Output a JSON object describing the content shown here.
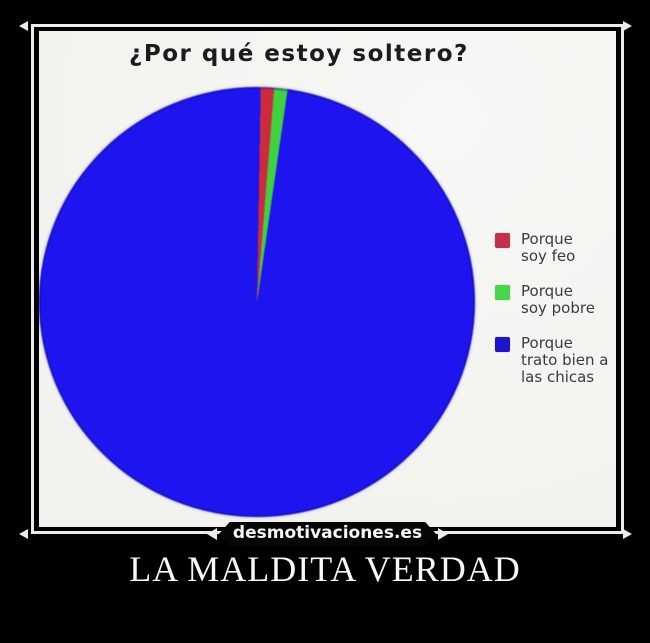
{
  "meme": {
    "caption": "LA MALDITA VERDAD",
    "watermark": "desmotivaciones.es"
  },
  "chart_data": {
    "type": "pie",
    "title": "¿Por qué estoy soltero?",
    "unit": "percent",
    "start_angle_deg": 1,
    "legend_position": "right",
    "slices": [
      {
        "label": "Porque soy feo",
        "value": 1,
        "color": "#cd2b3d"
      },
      {
        "label": "Porque soy pobre",
        "value": 1,
        "color": "#3ed33e"
      },
      {
        "label": "Porque trato bien a las chicas",
        "value": 98,
        "color": "#1d14f0"
      }
    ]
  },
  "legend": {
    "items": [
      {
        "lines": [
          "Porque",
          "soy feo"
        ],
        "color": "#c43049"
      },
      {
        "lines": [
          "Porque",
          "soy pobre"
        ],
        "color": "#46d647"
      },
      {
        "lines": [
          "Porque",
          "trato bien a",
          "las chicas"
        ],
        "color": "#1c15cd"
      }
    ]
  },
  "colors": {
    "canvas_bg": "#000000",
    "photo_bg": "#f4f4f1",
    "frame_line": "#ececec",
    "caption_text": "#f8f8f8",
    "title_text": "#1c1c1c",
    "legend_text": "#3b3b3b"
  }
}
